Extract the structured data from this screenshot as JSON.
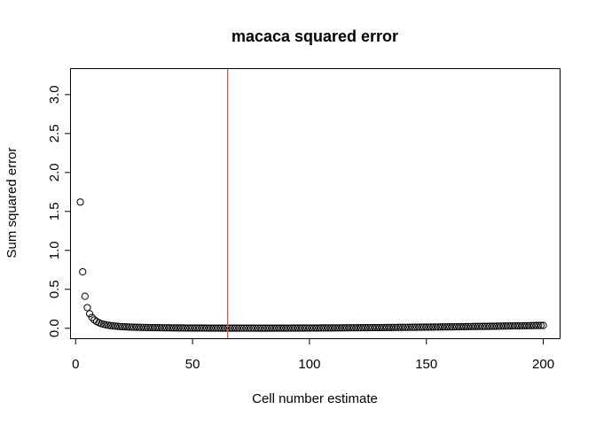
{
  "chart_data": {
    "type": "scatter",
    "title": "macaca squared error",
    "xlabel": "Cell number estimate",
    "ylabel": "Sum squared error",
    "xlim": [
      -2.0,
      207.0
    ],
    "ylim": [
      -0.128,
      3.328
    ],
    "xticks": [
      0,
      50,
      100,
      150,
      200
    ],
    "xtick_labels": [
      "0",
      "50",
      "100",
      "150",
      "200"
    ],
    "yticks": [
      0.0,
      0.5,
      1.0,
      1.5,
      2.0,
      2.5,
      3.0
    ],
    "ytick_labels": [
      "0.0",
      "0.5",
      "1.0",
      "1.5",
      "2.0",
      "2.5",
      "3.0"
    ],
    "grid": false,
    "legend": "none",
    "point_symbol": "open-circle",
    "point_color": "#000000",
    "x_range": [
      2,
      200
    ],
    "curve_params": {
      "a": 6.45,
      "b": 2e-06,
      "c": 65
    },
    "vline": {
      "x": 65,
      "color": "#d9534f"
    }
  }
}
